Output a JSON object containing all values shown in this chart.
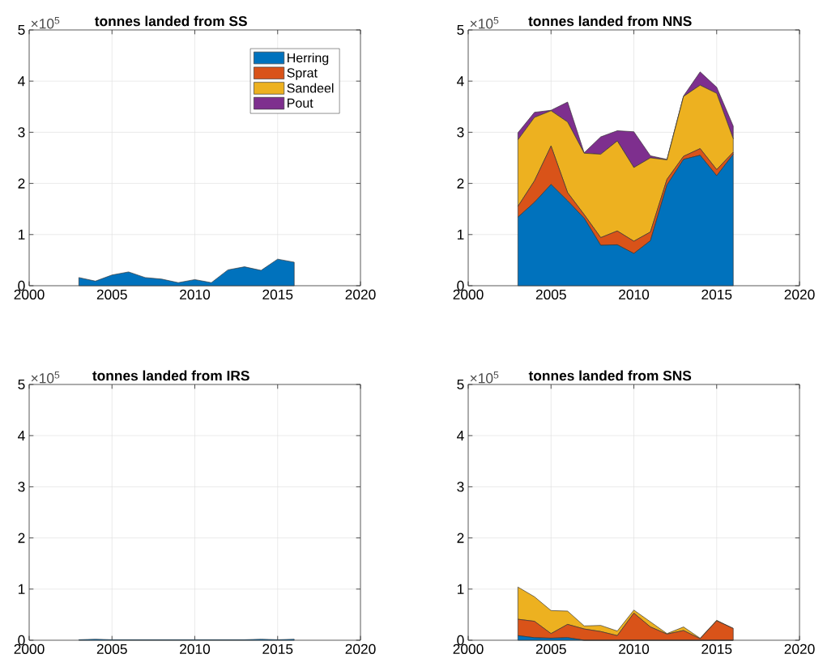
{
  "chart_data": [
    {
      "type": "area",
      "title": "tonnes landed from SS",
      "annotations": [
        "×10$^{5}$"
      ],
      "stacked": true,
      "x": [
        2003,
        2004,
        2005,
        2006,
        2007,
        2008,
        2009,
        2010,
        2011,
        2012,
        2013,
        2014,
        2015,
        2016
      ],
      "xlim": [
        2000,
        2020
      ],
      "ylim": [
        0,
        5
      ],
      "xticks": [
        2000,
        2005,
        2010,
        2015,
        2020
      ],
      "yticks": [
        0,
        1,
        2,
        3,
        4,
        5
      ],
      "grid": true,
      "legend": "top right",
      "series": [
        {
          "name": "Herring",
          "color": "#0072bd",
          "values": [
            0.16,
            0.09,
            0.21,
            0.27,
            0.16,
            0.13,
            0.06,
            0.12,
            0.06,
            0.31,
            0.37,
            0.3,
            0.52,
            0.46
          ]
        },
        {
          "name": "Sprat",
          "color": "#d95319",
          "values": [
            null,
            null,
            null,
            null,
            null,
            null,
            null,
            null,
            null,
            null,
            null,
            null,
            null,
            null
          ]
        },
        {
          "name": "Sandeel",
          "color": "#edb120",
          "values": [
            null,
            null,
            null,
            null,
            null,
            null,
            null,
            null,
            null,
            null,
            null,
            null,
            null,
            null
          ]
        },
        {
          "name": "Pout",
          "color": "#7e2f8e",
          "values": [
            null,
            null,
            null,
            null,
            null,
            null,
            null,
            null,
            null,
            null,
            null,
            null,
            null,
            null
          ]
        }
      ]
    },
    {
      "type": "area",
      "title": "tonnes landed from NNS",
      "annotations": [
        "×10$^{5}$"
      ],
      "stacked": true,
      "x": [
        2003,
        2004,
        2005,
        2006,
        2007,
        2008,
        2009,
        2010,
        2011,
        2012,
        2013,
        2014,
        2015,
        2016
      ],
      "xlim": [
        2000,
        2020
      ],
      "ylim": [
        0,
        5
      ],
      "xticks": [
        2000,
        2005,
        2010,
        2015,
        2020
      ],
      "yticks": [
        0,
        1,
        2,
        3,
        4,
        5
      ],
      "grid": true,
      "series": [
        {
          "color": "#0072bd",
          "values": [
            1.34,
            1.63,
            1.98,
            1.66,
            1.32,
            0.79,
            0.8,
            0.63,
            0.88,
            1.97,
            2.47,
            2.55,
            2.15,
            2.57
          ]
        },
        {
          "color": "#d95319",
          "values": [
            0.21,
            0.42,
            0.75,
            0.16,
            0.07,
            0.15,
            0.27,
            0.24,
            0.17,
            0.11,
            0.06,
            0.13,
            0.12,
            0.04
          ]
        },
        {
          "color": "#edb120",
          "values": [
            1.3,
            1.24,
            0.69,
            1.38,
            1.2,
            1.63,
            1.76,
            1.44,
            1.45,
            0.38,
            1.17,
            1.24,
            1.49,
            0.26
          ]
        },
        {
          "color": "#7e2f8e",
          "values": [
            0.14,
            0.1,
            0.01,
            0.39,
            0.01,
            0.34,
            0.2,
            0.7,
            0.04,
            0.01,
            0.01,
            0.26,
            0.12,
            0.25
          ]
        }
      ]
    },
    {
      "type": "area",
      "title": "tonnes landed from IRS",
      "annotations": [
        "×10$^{5}$"
      ],
      "stacked": true,
      "x": [
        2003,
        2004,
        2005,
        2006,
        2007,
        2008,
        2009,
        2010,
        2011,
        2012,
        2013,
        2014,
        2015,
        2016
      ],
      "xlim": [
        2000,
        2020
      ],
      "ylim": [
        0,
        5
      ],
      "xticks": [
        2000,
        2005,
        2010,
        2015,
        2020
      ],
      "yticks": [
        0,
        1,
        2,
        3,
        4,
        5
      ],
      "grid": true,
      "series": [
        {
          "color": "#0072bd",
          "values": [
            0.01,
            0.02,
            0.01,
            0.01,
            0.01,
            0.01,
            0.01,
            0.01,
            0.01,
            0.01,
            0.01,
            0.02,
            0.01,
            0.02
          ]
        }
      ]
    },
    {
      "type": "area",
      "title": "tonnes landed from SNS",
      "annotations": [
        "×10$^{5}$"
      ],
      "stacked": true,
      "x": [
        2003,
        2004,
        2005,
        2006,
        2007,
        2008,
        2009,
        2010,
        2011,
        2012,
        2013,
        2014,
        2015,
        2016
      ],
      "xlim": [
        2000,
        2020
      ],
      "ylim": [
        0,
        5
      ],
      "xticks": [
        2000,
        2005,
        2010,
        2015,
        2020
      ],
      "yticks": [
        0,
        1,
        2,
        3,
        4,
        5
      ],
      "grid": true,
      "series": [
        {
          "color": "#0072bd",
          "values": [
            0.09,
            0.05,
            0.04,
            0.05,
            0,
            0,
            0,
            0,
            0,
            0,
            0,
            0,
            0,
            0
          ]
        },
        {
          "color": "#d95319",
          "values": [
            0.32,
            0.32,
            0.09,
            0.26,
            0.22,
            0.17,
            0.09,
            0.53,
            0.26,
            0.12,
            0.19,
            0.03,
            0.38,
            0.23
          ]
        },
        {
          "color": "#edb120",
          "values": [
            0.63,
            0.48,
            0.45,
            0.26,
            0.06,
            0.12,
            0.09,
            0.06,
            0.1,
            0.01,
            0.07,
            0.01,
            0.01,
            0
          ]
        }
      ]
    }
  ]
}
